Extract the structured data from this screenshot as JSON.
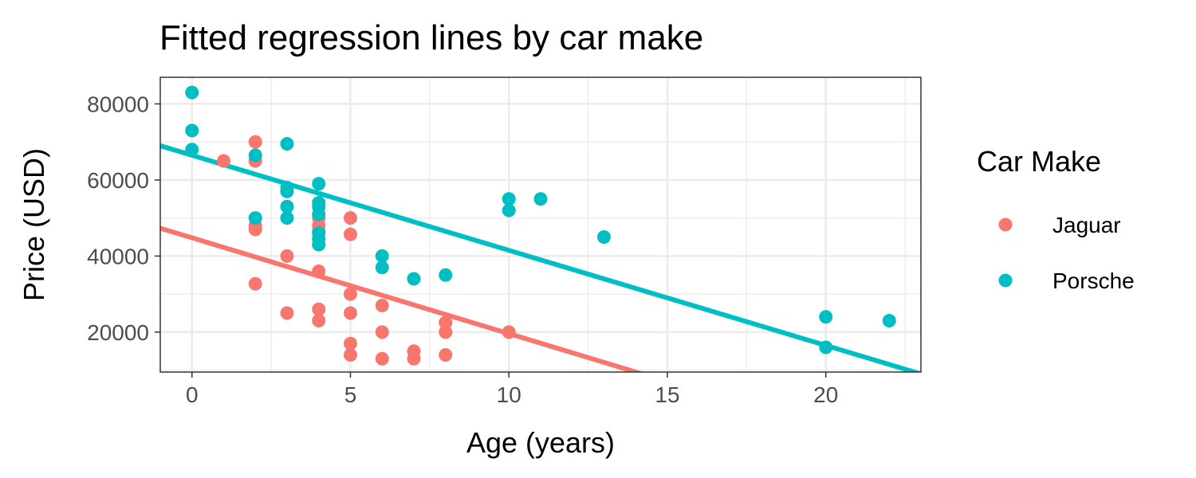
{
  "chart_data": {
    "type": "scatter",
    "title": "Fitted regression lines by car make",
    "xlabel": "Age (years)",
    "ylabel": "Price (USD)",
    "xlim": [
      -1,
      23
    ],
    "ylim": [
      9500,
      87000
    ],
    "x_ticks": [
      0,
      5,
      10,
      15,
      20
    ],
    "y_ticks": [
      20000,
      40000,
      60000,
      80000
    ],
    "x_ticks_labels": [
      "0",
      "5",
      "10",
      "15",
      "20"
    ],
    "y_ticks_labels": [
      "20000",
      "40000",
      "60000",
      "80000"
    ],
    "grid": true,
    "legend": {
      "title": "Car Make",
      "placement": "right"
    },
    "series": [
      {
        "name": "Jaguar",
        "color": "#F8766D",
        "points": [
          [
            1,
            65000
          ],
          [
            2,
            70000
          ],
          [
            2,
            65000
          ],
          [
            2,
            48000
          ],
          [
            2,
            47000
          ],
          [
            2,
            32700
          ],
          [
            3,
            40000
          ],
          [
            3,
            25000
          ],
          [
            4,
            50000
          ],
          [
            4,
            48000
          ],
          [
            4,
            46500
          ],
          [
            4,
            36000
          ],
          [
            4,
            26000
          ],
          [
            4,
            23000
          ],
          [
            5,
            50000
          ],
          [
            5,
            45700
          ],
          [
            5,
            30000
          ],
          [
            5,
            25000
          ],
          [
            5,
            17000
          ],
          [
            5,
            14000
          ],
          [
            6,
            27000
          ],
          [
            6,
            20000
          ],
          [
            6,
            13000
          ],
          [
            7,
            15000
          ],
          [
            7,
            13000
          ],
          [
            8,
            22500
          ],
          [
            8,
            20000
          ],
          [
            8,
            14000
          ],
          [
            10,
            20000
          ]
        ],
        "fit": {
          "intercept": 44800,
          "slope": -2520
        }
      },
      {
        "name": "Porsche",
        "color": "#00BFC4",
        "points": [
          [
            0,
            83000
          ],
          [
            0,
            73000
          ],
          [
            0,
            68000
          ],
          [
            2,
            66500
          ],
          [
            2,
            50000
          ],
          [
            3,
            69500
          ],
          [
            3,
            58000
          ],
          [
            3,
            57000
          ],
          [
            3,
            53000
          ],
          [
            3,
            50000
          ],
          [
            4,
            59000
          ],
          [
            4,
            54000
          ],
          [
            4,
            53000
          ],
          [
            4,
            51000
          ],
          [
            4,
            46000
          ],
          [
            4,
            44500
          ],
          [
            4,
            43000
          ],
          [
            6,
            40000
          ],
          [
            6,
            37000
          ],
          [
            7,
            34000
          ],
          [
            8,
            35000
          ],
          [
            10,
            55000
          ],
          [
            10,
            52000
          ],
          [
            11,
            55000
          ],
          [
            13,
            45000
          ],
          [
            20,
            24000
          ],
          [
            20,
            16000
          ],
          [
            22,
            23000
          ]
        ],
        "fit": {
          "intercept": 66500,
          "slope": -2500
        }
      }
    ]
  }
}
